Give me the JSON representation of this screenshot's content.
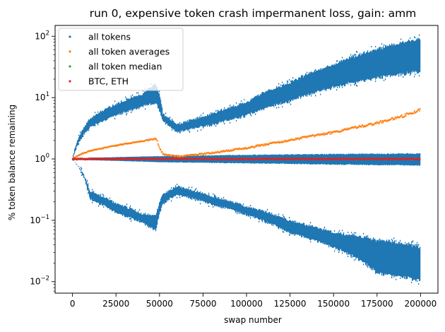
{
  "chart_data": {
    "type": "scatter",
    "title": "run 0, expensive token crash impermanent loss, gain: amm",
    "xlabel": "swap number",
    "ylabel": "% token balance remaining",
    "xlim": [
      -10000,
      210000
    ],
    "ylim": [
      0.0065,
      150
    ],
    "yscale": "log",
    "grid": false,
    "legend_position": "top-left",
    "x_ticks": [
      {
        "value": 0,
        "label": "0"
      },
      {
        "value": 25000,
        "label": "25000"
      },
      {
        "value": 50000,
        "label": "50000"
      },
      {
        "value": 75000,
        "label": "75000"
      },
      {
        "value": 100000,
        "label": "100000"
      },
      {
        "value": 125000,
        "label": "125000"
      },
      {
        "value": 150000,
        "label": "150000"
      },
      {
        "value": 175000,
        "label": "175000"
      },
      {
        "value": 200000,
        "label": "200000"
      }
    ],
    "y_ticks": [
      {
        "value": 0.01,
        "base": "10",
        "exp": "−2"
      },
      {
        "value": 0.1,
        "base": "10",
        "exp": "−1"
      },
      {
        "value": 1,
        "base": "10",
        "exp": "0"
      },
      {
        "value": 10,
        "base": "10",
        "exp": "1"
      },
      {
        "value": 100,
        "base": "10",
        "exp": "2"
      }
    ],
    "series": [
      {
        "name": "all tokens",
        "color": "#1f77b4",
        "bands": [
          {
            "x": [
              0,
              10000,
              25000,
              40000,
              48000,
              52000,
              60000,
              80000,
              100000,
              125000,
              150000,
              175000,
              200000
            ],
            "lower": [
              1.0,
              3.2,
              5.0,
              7.0,
              8.0,
              4.0,
              2.7,
              3.5,
              5.0,
              8.5,
              14.0,
              20.0,
              25.0
            ],
            "upper": [
              1.0,
              4.5,
              8.0,
              11.5,
              17.0,
              5.5,
              3.6,
              5.5,
              8.5,
              18.0,
              35.0,
              65.0,
              95.0
            ]
          },
          {
            "x": [
              0,
              10000,
              25000,
              40000,
              48000,
              52000,
              60000,
              80000,
              100000,
              125000,
              150000,
              175000,
              200000
            ],
            "lower": [
              1.0,
              0.22,
              0.13,
              0.09,
              0.065,
              0.18,
              0.26,
              0.18,
              0.12,
              0.06,
              0.035,
              0.013,
              0.01
            ],
            "upper": [
              1.0,
              0.3,
              0.19,
              0.13,
              0.12,
              0.27,
              0.36,
              0.25,
              0.17,
              0.1,
              0.065,
              0.05,
              0.04
            ]
          },
          {
            "x": [
              0,
              50000,
              100000,
              150000,
              200000
            ],
            "lower": [
              0.97,
              0.88,
              0.84,
              0.8,
              0.77
            ],
            "upper": [
              1.03,
              1.12,
              1.18,
              1.22,
              1.25
            ]
          }
        ]
      },
      {
        "name": "all token averages",
        "color": "#ff7f0e",
        "x": [
          0,
          5000,
          10000,
          20000,
          30000,
          40000,
          48000,
          50000,
          52000,
          60000,
          80000,
          100000,
          125000,
          150000,
          175000,
          190000,
          200000
        ],
        "y": [
          1.0,
          1.2,
          1.35,
          1.55,
          1.75,
          1.95,
          2.15,
          1.5,
          1.2,
          1.1,
          1.25,
          1.5,
          2.0,
          2.7,
          3.8,
          5.0,
          6.3
        ]
      },
      {
        "name": "all token median",
        "color": "#2ca02c",
        "x": [
          0,
          50000,
          100000,
          150000,
          200000
        ],
        "y": [
          1.0,
          1.0,
          1.0,
          1.0,
          1.0
        ]
      },
      {
        "name": "BTC, ETH",
        "color": "#d62728",
        "x": [
          0,
          50000,
          100000,
          150000,
          200000
        ],
        "y": [
          1.0,
          1.0,
          1.0,
          1.0,
          1.0
        ],
        "spread": [
          0.96,
          1.04
        ]
      }
    ]
  }
}
